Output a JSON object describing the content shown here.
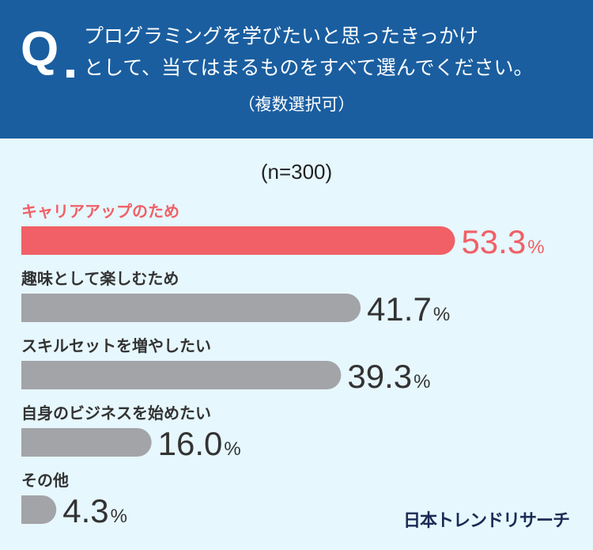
{
  "header": {
    "q_mark": "Q",
    "question_line1": "プログラミングを学びたいと思ったきっかけ",
    "question_line2": "として、当てはまるものをすべて選んでください。",
    "note": "（複数選択可）"
  },
  "sample_size": "(n=300)",
  "brand": "日本トレンドリサーチ",
  "colors": {
    "header_bg": "#1a5ea0",
    "background": "#e6f7fd",
    "highlight": "#f06066",
    "bar": "#a3a4a8"
  },
  "chart_data": {
    "type": "bar",
    "orientation": "horizontal",
    "categories": [
      "キャリアアップのため",
      "趣味として楽しむため",
      "スキルセットを増やしたい",
      "自身のビジネスを始めたい",
      "その他"
    ],
    "values": [
      53.3,
      41.7,
      39.3,
      16.0,
      4.3
    ],
    "value_labels": [
      "53.3",
      "41.7",
      "39.3",
      "16.0",
      "4.3"
    ],
    "unit": "%",
    "highlight_index": 0
  }
}
